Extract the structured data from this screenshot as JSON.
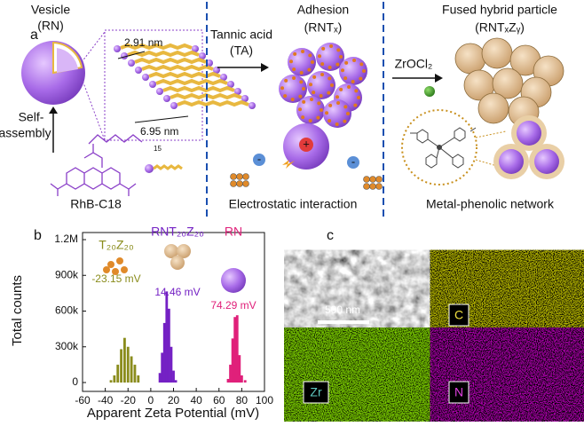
{
  "panel_a": {
    "label": "a",
    "vesicle": {
      "title": "Vesicle",
      "subtitle": "(RN)"
    },
    "bilayer": {
      "thickness": "2.91 nm",
      "length": "6.95 nm"
    },
    "self_assembly": [
      "Self-",
      "assembly"
    ],
    "molecule": {
      "name": "RhB-C18",
      "chain_subscript": "15"
    },
    "step1": {
      "reagent": "Tannic acid",
      "reagent_abbr": "(TA)",
      "title": "Adhesion",
      "subtitle": "(RNTₓ)",
      "caption": "Electrostatic interaction",
      "charges": [
        "+",
        "-",
        "-"
      ]
    },
    "step2": {
      "reagent": "ZrOCl₂",
      "title": "Fused hybrid particle",
      "subtitle": "(RNTₓZᵧ)",
      "caption": "Metal-phenolic network"
    }
  },
  "chart_data": {
    "type": "bar",
    "label": "b",
    "xlabel": "Apparent Zeta Potential (mV)",
    "ylabel": "Total counts",
    "xlim": [
      -60,
      100
    ],
    "xticks": [
      -60,
      -40,
      -20,
      0,
      20,
      40,
      60,
      80,
      100
    ],
    "ylim": [
      0,
      1200000
    ],
    "yticks": [
      0,
      {
        "value": 300000,
        "label": "300k"
      },
      {
        "value": 600000,
        "label": "600k"
      },
      {
        "value": 900000,
        "label": "900k"
      },
      {
        "value": 1200000,
        "label": "1.2M"
      }
    ],
    "series": [
      {
        "name": "T₂₀Z₂₀",
        "color": "#8a8c1c",
        "annotation": "-23.15 mV",
        "x": [
          -35,
          -32,
          -29,
          -26,
          -23,
          -20,
          -17,
          -14,
          -11
        ],
        "values": [
          20000,
          60000,
          150000,
          280000,
          375000,
          300000,
          220000,
          150000,
          60000
        ]
      },
      {
        "name": "RNT₂₀Z₂₀",
        "color": "#7421c4",
        "annotation": "14.46 mV",
        "x": [
          8,
          10,
          12,
          14,
          16,
          18,
          20,
          22
        ],
        "values": [
          80000,
          250000,
          500000,
          765000,
          620000,
          300000,
          100000,
          20000
        ]
      },
      {
        "name": "RN",
        "color": "#e0207a",
        "annotation": "74.29 mV",
        "x": [
          68,
          70,
          72,
          74,
          76,
          78,
          80,
          83
        ],
        "values": [
          30000,
          150000,
          370000,
          550000,
          565000,
          230000,
          60000,
          20000
        ]
      }
    ]
  },
  "panel_c": {
    "label": "c",
    "scale_bar": "500 nm",
    "maps": [
      "C",
      "Zr",
      "N"
    ]
  }
}
